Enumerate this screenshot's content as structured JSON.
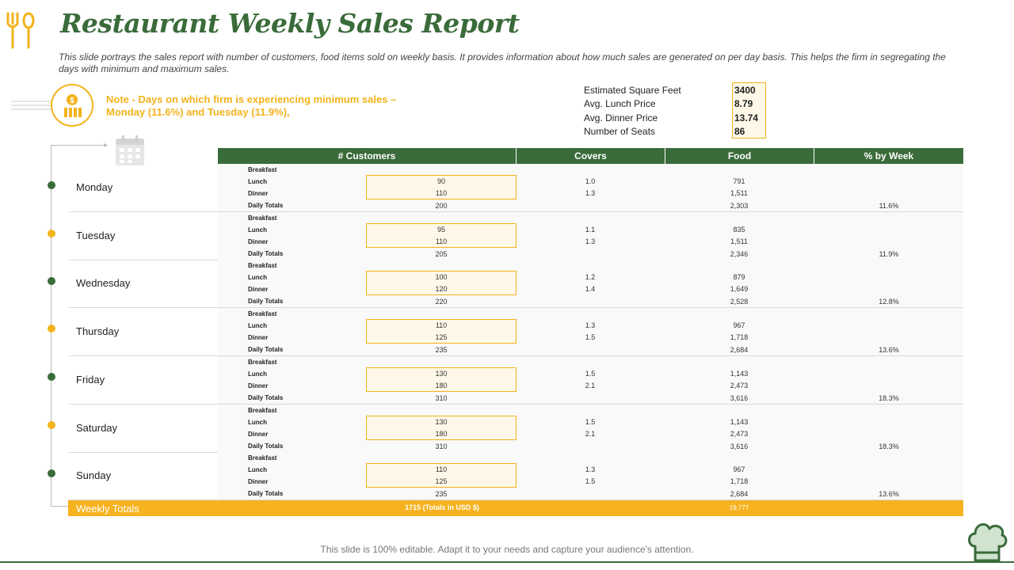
{
  "title": "Restaurant Weekly Sales Report",
  "subtitle": "This slide portrays the sales report with number of customers, food items sold on weekly basis. It provides information about how much sales are generated on per day basis. This helps the firm in segregating the days with minimum and maximum sales.",
  "note": "Note - Days on which firm is experiencing minimum sales –  Monday (11.6%) and Tuesday (11.9%),",
  "stats": [
    {
      "label": "Estimated Square Feet",
      "value": "3400"
    },
    {
      "label": "Avg. Lunch Price",
      "value": "8.79"
    },
    {
      "label": "Avg. Dinner Price",
      "value": "13.74"
    },
    {
      "label": "Number of Seats",
      "value": "86"
    }
  ],
  "headers": [
    "# Customers",
    "Covers",
    "Food",
    "% by Week"
  ],
  "meal_labels": {
    "breakfast": "Breakfast",
    "lunch": "Lunch",
    "dinner": "Dinner",
    "totals": "Daily Totals"
  },
  "days": [
    {
      "name": "Monday",
      "dot": "green",
      "lunch_customers": "90",
      "dinner_customers": "110",
      "total_customers": "200",
      "lunch_covers": "1.0",
      "dinner_covers": "1.3",
      "lunch_food": "791",
      "dinner_food": "1,511",
      "total_food": "2,303",
      "pct_week": "11.6%"
    },
    {
      "name": "Tuesday",
      "dot": "gold",
      "lunch_customers": "95",
      "dinner_customers": "110",
      "total_customers": "205",
      "lunch_covers": "1.1",
      "dinner_covers": "1.3",
      "lunch_food": "835",
      "dinner_food": "1,511",
      "total_food": "2,346",
      "pct_week": "11.9%"
    },
    {
      "name": "Wednesday",
      "dot": "green",
      "lunch_customers": "100",
      "dinner_customers": "120",
      "total_customers": "220",
      "lunch_covers": "1.2",
      "dinner_covers": "1.4",
      "lunch_food": "879",
      "dinner_food": "1,649",
      "total_food": "2,528",
      "pct_week": "12.8%"
    },
    {
      "name": "Thursday",
      "dot": "gold",
      "lunch_customers": "110",
      "dinner_customers": "125",
      "total_customers": "235",
      "lunch_covers": "1.3",
      "dinner_covers": "1.5",
      "lunch_food": "967",
      "dinner_food": "1,718",
      "total_food": "2,684",
      "pct_week": "13.6%"
    },
    {
      "name": "Friday",
      "dot": "green",
      "lunch_customers": "130",
      "dinner_customers": "180",
      "total_customers": "310",
      "lunch_covers": "1.5",
      "dinner_covers": "2.1",
      "lunch_food": "1,143",
      "dinner_food": "2,473",
      "total_food": "3,616",
      "pct_week": "18.3%"
    },
    {
      "name": "Saturday",
      "dot": "gold",
      "lunch_customers": "130",
      "dinner_customers": "180",
      "total_customers": "310",
      "lunch_covers": "1.5",
      "dinner_covers": "2.1",
      "lunch_food": "1,143",
      "dinner_food": "2,473",
      "total_food": "3,616",
      "pct_week": "18.3%"
    },
    {
      "name": "Sunday",
      "dot": "green",
      "lunch_customers": "110",
      "dinner_customers": "125",
      "total_customers": "235",
      "lunch_covers": "1.3",
      "dinner_covers": "1.5",
      "lunch_food": "967",
      "dinner_food": "1,718",
      "total_food": "2,684",
      "pct_week": "13.6%"
    }
  ],
  "weekly_totals": {
    "label": "Weekly Totals",
    "customers": "1715 (Totals in USD $)",
    "food": "19,777"
  },
  "footer": "This slide is 100% editable. Adapt it to your needs and capture your audience's attention.",
  "colors": {
    "green": "#3a6b3a",
    "gold": "#f3b31c",
    "band": "#f9f9f9",
    "highlight": "#fff8e8"
  },
  "icons": [
    "cutlery-icon",
    "money-icon",
    "calendar-icon",
    "chef-hat-icon"
  ]
}
